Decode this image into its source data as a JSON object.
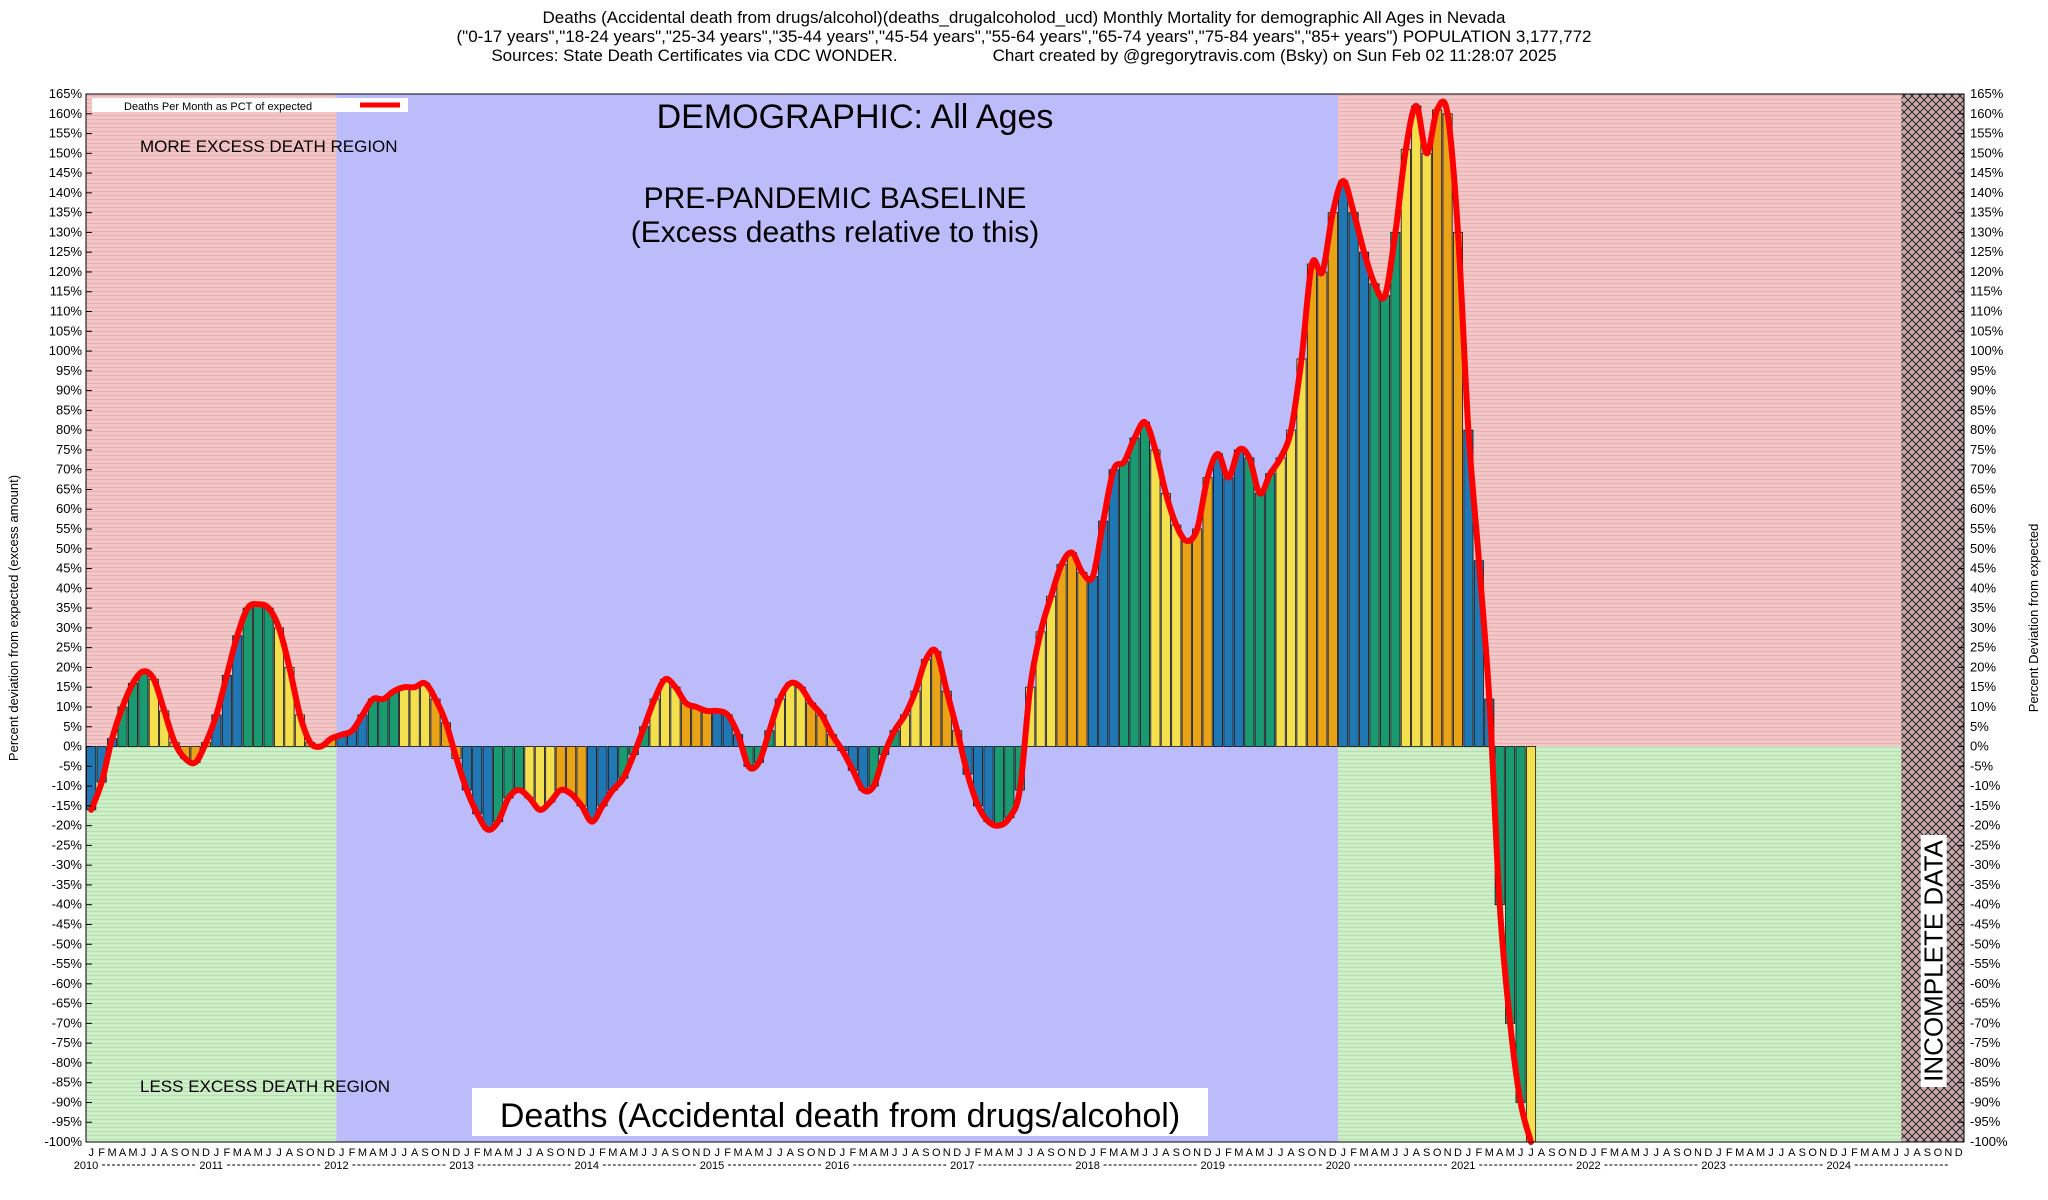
{
  "header": {
    "line1": "Deaths (Accidental death from drugs/alcohol)(deaths_drugalcoholod_ucd) Monthly Mortality for demographic All Ages in Nevada",
    "line2": "(\"0-17 years\",\"18-24 years\",\"25-34 years\",\"35-44 years\",\"45-54 years\",\"55-64 years\",\"65-74 years\",\"75-84 years\",\"85+ years\") POPULATION 3,177,772",
    "line3_left": "Sources: State Death Certificates via CDC WONDER.",
    "line3_right": "Chart created by @gregorytravis.com (Bsky) on Sun Feb 02 11:28:07 2025"
  },
  "labels": {
    "demographic": "DEMOGRAPHIC: All Ages",
    "baseline_1": "PRE-PANDEMIC BASELINE",
    "baseline_2": "(Excess deaths relative to this)",
    "more_region": "MORE EXCESS DEATH REGION",
    "less_region": "LESS EXCESS DEATH REGION",
    "incomplete": "INCOMPLETE DATA",
    "bottom_title": "Deaths (Accidental death from drugs/alcohol)",
    "legend": "Deaths Per Month as PCT of expected"
  },
  "colors": {
    "excess_region": "#f2c6c6",
    "deficit_region": "#cdeec6",
    "baseline_region": "#bdbcfb",
    "line": "#ff0000",
    "bar_palette": [
      "#1f78b4",
      "#1a9a70",
      "#f4e04d",
      "#e8a317"
    ]
  },
  "chart_data": {
    "type": "bar",
    "title": "Deaths (Accidental death from drugs/alcohol)",
    "ylabel_left": "Percent deviation from expected (excess amount)",
    "ylabel_right": "Percent Deviation from expected",
    "ylim": [
      -100,
      165
    ],
    "ytick_step": 5,
    "start": "2010-01",
    "baseline_period": [
      "2012-01",
      "2019-12"
    ],
    "incomplete_from": "2024-07",
    "month_letters": [
      "J",
      "F",
      "M",
      "A",
      "M",
      "J",
      "J",
      "A",
      "S",
      "O",
      "N",
      "D"
    ],
    "years": [
      "2010",
      "2011",
      "2012",
      "2013",
      "2014",
      "2015",
      "2016",
      "2017",
      "2018",
      "2019",
      "2020",
      "2021",
      "2022",
      "2023",
      "2024"
    ],
    "series": [
      {
        "name": "Deaths Per Month as PCT of expected",
        "values": [
          -16,
          -9,
          2,
          10,
          16,
          19,
          17,
          9,
          1,
          -3,
          -4,
          1,
          8,
          18,
          28,
          35,
          36,
          35,
          30,
          20,
          8,
          1,
          0,
          2,
          3,
          4,
          8,
          12,
          12,
          14,
          15,
          15,
          16,
          12,
          6,
          -3,
          -11,
          -17,
          -21,
          -19,
          -13,
          -11,
          -13,
          -16,
          -14,
          -11,
          -12,
          -15,
          -19,
          -15,
          -11,
          -8,
          -2,
          5,
          12,
          17,
          15,
          11,
          10,
          9,
          9,
          8,
          3,
          -5,
          -4,
          4,
          12,
          16,
          15,
          11,
          8,
          3,
          -1,
          -6,
          -11,
          -10,
          -2,
          4,
          8,
          14,
          22,
          24,
          14,
          4,
          -7,
          -15,
          -19,
          -20,
          -18,
          -11,
          15,
          29,
          38,
          46,
          49,
          44,
          43,
          57,
          70,
          72,
          78,
          82,
          75,
          64,
          56,
          52,
          55,
          68,
          74,
          68,
          75,
          73,
          64,
          69,
          73,
          80,
          98,
          122,
          120,
          135,
          143,
          135,
          125,
          117,
          114,
          130,
          151,
          162,
          150,
          161,
          160,
          130,
          80,
          47,
          12,
          -40,
          -70,
          -90,
          -100
        ]
      }
    ]
  }
}
